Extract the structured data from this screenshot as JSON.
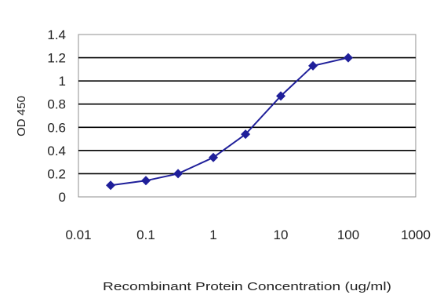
{
  "chart_data": {
    "type": "scatter",
    "title": "",
    "xlabel": "Recombinant Protein Concentration (ug/ml)",
    "ylabel": "OD 450",
    "x_scale": "log",
    "xlim": [
      0.01,
      1000
    ],
    "ylim": [
      0,
      1.4
    ],
    "x_ticks": [
      0.01,
      0.1,
      1,
      10,
      100,
      1000
    ],
    "x_tick_labels": [
      "0.01",
      "0.1",
      "1",
      "10",
      "100",
      "1000"
    ],
    "y_ticks": [
      0,
      0.2,
      0.4,
      0.6,
      0.8,
      1,
      1.2,
      1.4
    ],
    "y_tick_labels": [
      "0",
      "0.2",
      "0.4",
      "0.6",
      "0.8",
      "1",
      "1.2",
      "1.4"
    ],
    "grid": "horizontal",
    "series": [
      {
        "x": [
          0.03,
          0.1,
          0.3,
          1,
          3,
          10,
          30,
          100
        ],
        "y": [
          0.1,
          0.14,
          0.2,
          0.34,
          0.54,
          0.87,
          1.13,
          1.2
        ],
        "color": "#1f1f9a",
        "marker": "diamond"
      }
    ]
  }
}
